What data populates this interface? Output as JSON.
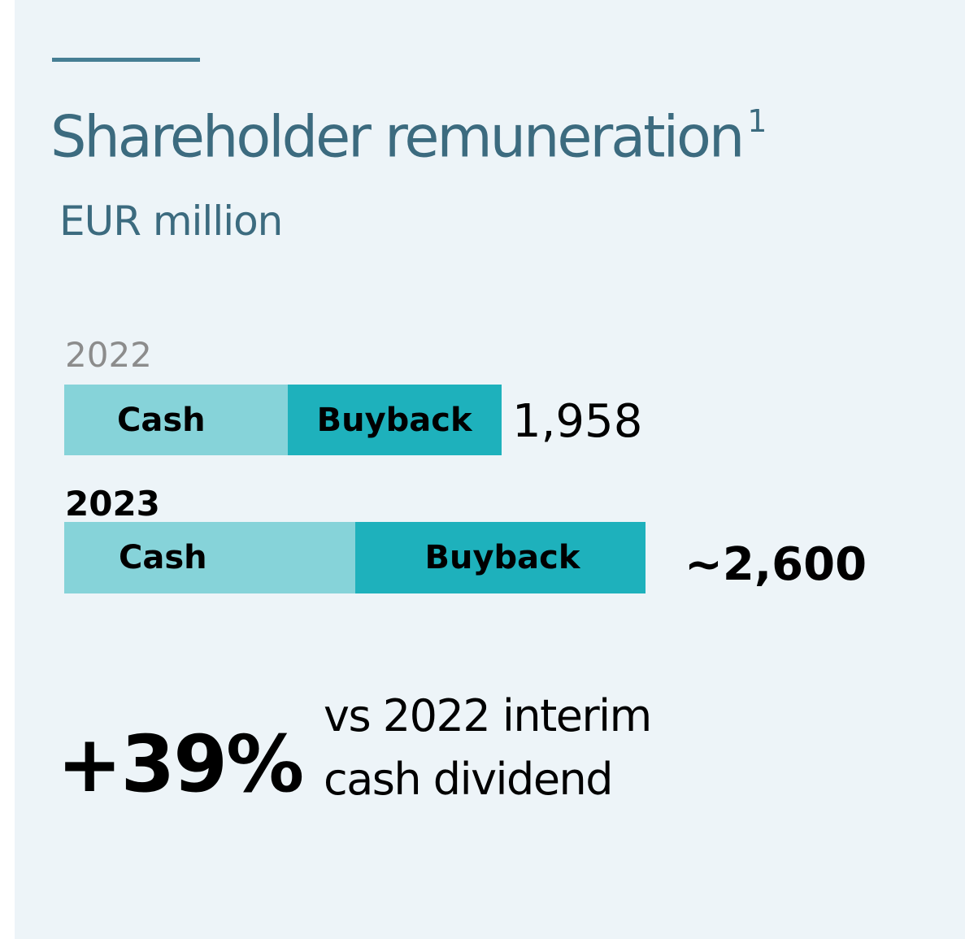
{
  "chart_data": {
    "type": "bar",
    "orientation": "horizontal",
    "stacked": true,
    "title": "Shareholder remuneration",
    "title_footnote": "1",
    "subtitle": "EUR million",
    "series": [
      {
        "name": "Cash",
        "color": "#86d3d9"
      },
      {
        "name": "Buyback",
        "color": "#1eb1bc"
      }
    ],
    "categories": [
      "2022",
      "2023"
    ],
    "totals": [
      "1,958",
      "~2,600"
    ],
    "total_values": [
      1958,
      2600
    ],
    "cash_share": [
      0.51,
      0.5
    ],
    "grid": false,
    "legend": "inline"
  },
  "callout": {
    "value": "+39%",
    "line1": "vs 2022 interim",
    "line2": "cash dividend"
  },
  "colors": {
    "background": "#edf4f8",
    "title": "#3c6b7f",
    "accent_rule": "#467e94",
    "year_2022": "#8c8c8c",
    "year_2023": "#000000",
    "cash": "#86d3d9",
    "buyback": "#1eb1bc"
  }
}
